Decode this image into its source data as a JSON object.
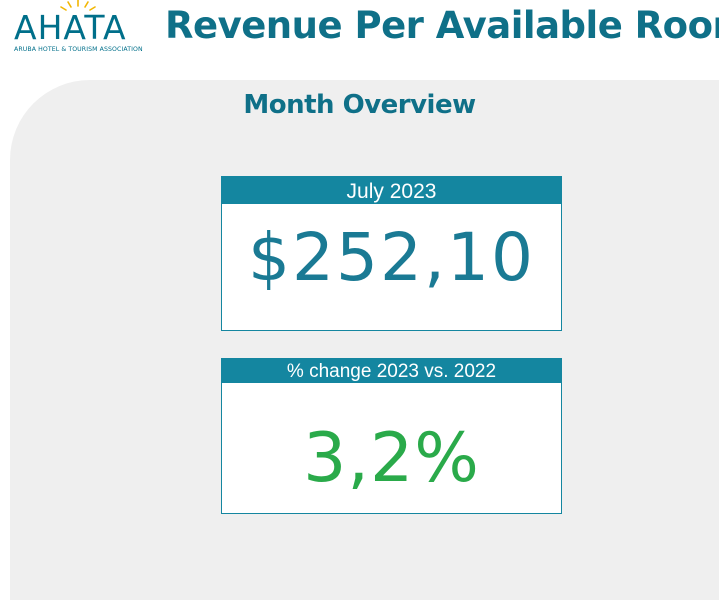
{
  "logo": {
    "name": "AHATA",
    "subtitle": "ARUBA HOTEL & TOURISM ASSOCIATION"
  },
  "header": {
    "title": "Revenue Per Available Room"
  },
  "overview": {
    "title": "Month Overview"
  },
  "cards": [
    {
      "label": "July 2023",
      "value": "$252,10"
    },
    {
      "label": "% change 2023 vs. 2022",
      "value": "3,2%"
    }
  ],
  "colors": {
    "brand": "#0f7088",
    "card_header": "#1486a0",
    "positive": "#2aaa4a",
    "panel": "#efefef"
  }
}
